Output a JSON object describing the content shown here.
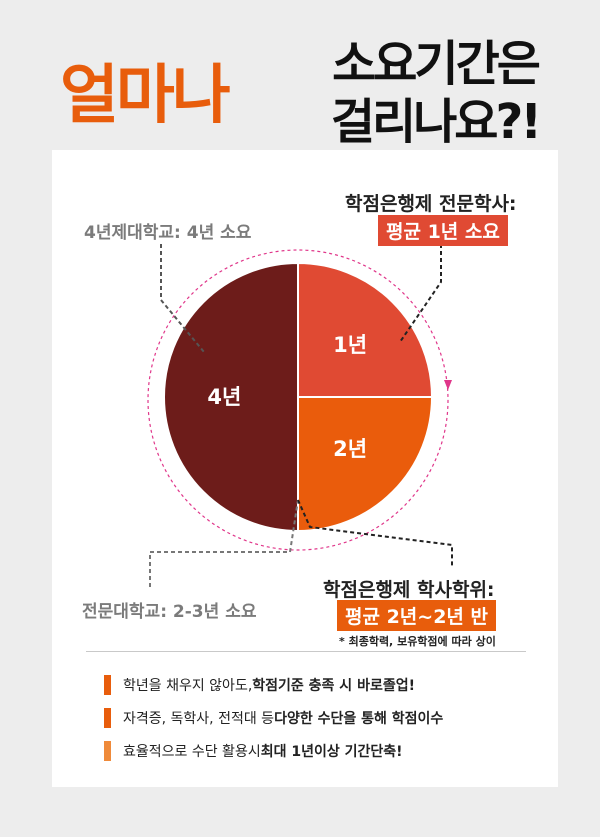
{
  "header": {
    "title_emphasis": "얼마나",
    "title_line1": "소요기간은",
    "title_line2": "걸리나요?!"
  },
  "chart_data": {
    "type": "pie",
    "slices": [
      {
        "label": "4년",
        "value": 50,
        "color": "#6d1c1a"
      },
      {
        "label": "1년",
        "value": 25,
        "color": "#e04a33"
      },
      {
        "label": "2년",
        "value": 25,
        "color": "#ea5c0c"
      }
    ]
  },
  "annotations": {
    "four_year": "4년제대학교: 4년 소요",
    "college": "전문대학교: 2-3년 소요",
    "cb_associate_title": "학점은행제 전문학사:",
    "cb_associate_badge": "평균 1년 소요",
    "cb_bachelor_title": "학점은행제 학사학위:",
    "cb_bachelor_badge": "평균 2년~2년 반",
    "note": "* 최종학력, 보유학점에 따라 상이"
  },
  "bullets": [
    {
      "plain": "학년을 채우지 않아도, ",
      "bold": "학점기준 충족 시 바로졸업!",
      "tail": "",
      "color": "#e85d0c"
    },
    {
      "plain": "자격증, 독학사, 전적대 등 ",
      "bold": "다양한 수단을 통해 학점이수",
      "tail": "",
      "color": "#e85d0c"
    },
    {
      "plain": "효율적으로 수단 활용시 ",
      "bold": "최대 1년이상 기간단축!",
      "tail": "",
      "color": "#ef8a3a"
    }
  ],
  "colors": {
    "orange": "#e85d0c",
    "red": "#e04a33",
    "maroon": "#6d1c1a",
    "dashed_circle": "#e0368a"
  }
}
